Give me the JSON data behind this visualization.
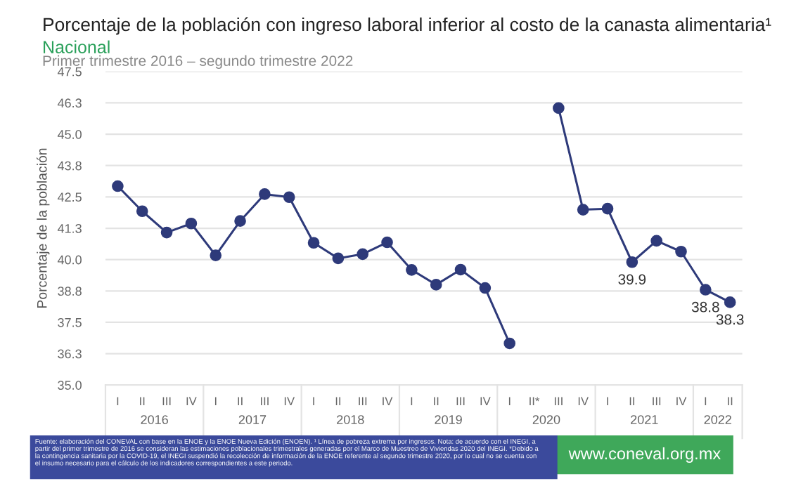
{
  "chart_data": {
    "type": "line",
    "title": "Porcentaje de la población con ingreso laboral inferior al costo de la canasta alimentaria¹",
    "subtitle": "Nacional",
    "ylabel": "Porcentaje de la población",
    "categories": [
      "I",
      "II",
      "III",
      "IV",
      "I",
      "II",
      "III",
      "IV",
      "I",
      "II",
      "III",
      "IV",
      "I",
      "II",
      "III",
      "IV",
      "I",
      "II*",
      "III",
      "IV",
      "I",
      "II",
      "III",
      "IV",
      "I",
      "II"
    ],
    "series": [
      {
        "color": "#2e3a7a",
        "values": [
          42.93,
          41.93,
          41.08,
          41.44,
          40.17,
          41.54,
          42.61,
          42.49,
          40.67,
          40.05,
          40.22,
          40.69,
          39.59,
          39.0,
          39.6,
          38.87,
          36.66,
          null,
          46.04,
          41.99,
          42.03,
          39.9,
          40.75,
          40.32,
          38.8,
          38.3
        ],
        "value_labels": [
          null,
          null,
          null,
          null,
          null,
          null,
          null,
          null,
          null,
          null,
          null,
          null,
          null,
          null,
          null,
          null,
          null,
          null,
          null,
          null,
          null,
          "39.9",
          null,
          null,
          "38.8",
          "38.3"
        ]
      }
    ],
    "ylim": [
      35.0,
      47.5
    ],
    "yticks": [
      {
        "value": 35,
        "label": "35.0"
      },
      {
        "value": 36.25,
        "label": "36.3"
      },
      37.5,
      {
        "value": 38.75,
        "label": "38.8"
      },
      {
        "value": 40,
        "label": "40.0"
      },
      {
        "value": 41.25,
        "label": "41.3"
      },
      42.5,
      {
        "value": 43.75,
        "label": "43.8"
      },
      {
        "value": 45,
        "label": "45.0"
      },
      {
        "value": 46.25,
        "label": "46.3"
      },
      47.5
    ],
    "grid": "y",
    "marker": "circle",
    "line_style": "solid",
    "legend": false,
    "annotations": [
      "Primer trimestre 2016 – segundo trimestre 2022",
      "Fuente: elaboración del CONEVAL con base en la ENOE y la ENOE Nueva Edición (ENOEN). ¹ Línea de pobreza extrema por ingresos. Nota: de acuerdo con el INEGI, a partir del primer trimestre de 2016 se consideran las estimaciones poblacionales trimestrales generadas por el Marco de Muestreo de Viviendas 2020 del INEGI. *Debido a la contingencia sanitaria por la COVID-19, el INEGI suspendió la recolección de información de la ENOE referente al segundo trimestre 2020, por lo cual no se cuenta con el insumo necesario para el cálculo de los indicadores correspondientes a este periodo.",
      "www.coneval.org.mx",
      "2016",
      "2017",
      "2018",
      "2019",
      "2020",
      "2021",
      "2022"
    ]
  }
}
